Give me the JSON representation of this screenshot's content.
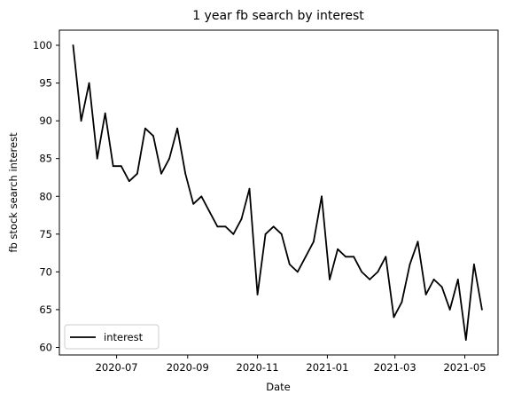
{
  "chart_data": {
    "type": "line",
    "title": "1 year fb search by interest",
    "xlabel": "Date",
    "ylabel": "fb stock search interest",
    "legend_position": "lower-left",
    "grid": false,
    "line_color": "#000000",
    "xlim": [
      "2020-05-12",
      "2021-05-30"
    ],
    "ylim": [
      59,
      102
    ],
    "yticks": [
      60,
      65,
      70,
      75,
      80,
      85,
      90,
      95,
      100
    ],
    "xticks": [
      {
        "date": "2020-07-01",
        "label": "2020-07"
      },
      {
        "date": "2020-09-01",
        "label": "2020-09"
      },
      {
        "date": "2020-11-01",
        "label": "2020-11"
      },
      {
        "date": "2021-01-01",
        "label": "2021-01"
      },
      {
        "date": "2021-03-01",
        "label": "2021-03"
      },
      {
        "date": "2021-05-01",
        "label": "2021-05"
      }
    ],
    "series": [
      {
        "name": "interest",
        "x": [
          "2020-05-24",
          "2020-05-31",
          "2020-06-07",
          "2020-06-14",
          "2020-06-21",
          "2020-06-28",
          "2020-07-05",
          "2020-07-12",
          "2020-07-19",
          "2020-07-26",
          "2020-08-02",
          "2020-08-09",
          "2020-08-16",
          "2020-08-23",
          "2020-08-30",
          "2020-09-06",
          "2020-09-13",
          "2020-09-20",
          "2020-09-27",
          "2020-10-04",
          "2020-10-11",
          "2020-10-18",
          "2020-10-25",
          "2020-11-01",
          "2020-11-08",
          "2020-11-15",
          "2020-11-22",
          "2020-11-29",
          "2020-12-06",
          "2020-12-13",
          "2020-12-20",
          "2020-12-27",
          "2021-01-03",
          "2021-01-10",
          "2021-01-17",
          "2021-01-24",
          "2021-01-31",
          "2021-02-07",
          "2021-02-14",
          "2021-02-21",
          "2021-02-28",
          "2021-03-07",
          "2021-03-14",
          "2021-03-21",
          "2021-03-28",
          "2021-04-04",
          "2021-04-11",
          "2021-04-18",
          "2021-04-25",
          "2021-05-02",
          "2021-05-09",
          "2021-05-16"
        ],
        "values": [
          100,
          90,
          95,
          85,
          91,
          84,
          84,
          82,
          83,
          89,
          88,
          83,
          85,
          89,
          83,
          79,
          80,
          78,
          76,
          76,
          75,
          77,
          81,
          67,
          75,
          76,
          75,
          71,
          70,
          72,
          74,
          80,
          69,
          73,
          72,
          72,
          70,
          69,
          70,
          72,
          64,
          66,
          71,
          74,
          67,
          69,
          68,
          65,
          69,
          61,
          71,
          65
        ]
      }
    ]
  }
}
